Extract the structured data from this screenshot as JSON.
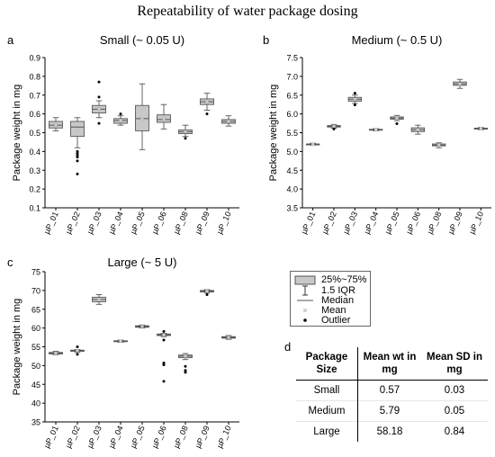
{
  "title": "Repeatability of water package dosing",
  "chart_data": [
    {
      "type": "box",
      "letter": "a",
      "title": "Small (~ 0.05 U)",
      "ylabel": "Package weight in mg",
      "xlabel": "",
      "ylim": [
        0.1,
        0.9
      ],
      "yticks": [
        "0.1",
        "0.2",
        "0.3",
        "0.4",
        "0.5",
        "0.6",
        "0.7",
        "0.8",
        "0.9"
      ],
      "categories": [
        "µP_01",
        "µP_02",
        "µP_03",
        "µP_04",
        "µP_05",
        "µP_06",
        "µP_08",
        "µP_09",
        "µP_10"
      ],
      "boxes": [
        {
          "whisker_low": 0.51,
          "q1": 0.525,
          "median": 0.54,
          "mean": 0.54,
          "q3": 0.56,
          "whisker_high": 0.58,
          "outliers": []
        },
        {
          "whisker_low": 0.42,
          "q1": 0.48,
          "median": 0.53,
          "mean": 0.51,
          "q3": 0.56,
          "whisker_high": 0.58,
          "outliers": [
            0.28,
            0.35,
            0.37,
            0.38,
            0.39,
            0.4
          ]
        },
        {
          "whisker_low": 0.58,
          "q1": 0.605,
          "median": 0.625,
          "mean": 0.625,
          "q3": 0.645,
          "whisker_high": 0.67,
          "outliers": [
            0.55,
            0.69,
            0.77
          ]
        },
        {
          "whisker_low": 0.54,
          "q1": 0.55,
          "median": 0.565,
          "mean": 0.565,
          "q3": 0.575,
          "whisker_high": 0.59,
          "outliers": [
            0.6
          ]
        },
        {
          "whisker_low": 0.41,
          "q1": 0.51,
          "median": 0.575,
          "mean": 0.575,
          "q3": 0.645,
          "whisker_high": 0.76,
          "outliers": []
        },
        {
          "whisker_low": 0.52,
          "q1": 0.555,
          "median": 0.57,
          "mean": 0.575,
          "q3": 0.595,
          "whisker_high": 0.65,
          "outliers": []
        },
        {
          "whisker_low": 0.48,
          "q1": 0.495,
          "median": 0.505,
          "mean": 0.505,
          "q3": 0.515,
          "whisker_high": 0.54,
          "outliers": [
            0.47
          ]
        },
        {
          "whisker_low": 0.62,
          "q1": 0.65,
          "median": 0.665,
          "mean": 0.665,
          "q3": 0.68,
          "whisker_high": 0.71,
          "outliers": [
            0.6
          ]
        },
        {
          "whisker_low": 0.535,
          "q1": 0.55,
          "median": 0.56,
          "mean": 0.56,
          "q3": 0.57,
          "whisker_high": 0.59,
          "outliers": []
        }
      ]
    },
    {
      "type": "box",
      "letter": "b",
      "title": "Medium (~ 0.5 U)",
      "ylabel": "Package weight in mg",
      "xlabel": "",
      "ylim": [
        3.5,
        7.5
      ],
      "yticks": [
        "3.5",
        "4.0",
        "4.5",
        "5.0",
        "5.5",
        "6.0",
        "6.5",
        "7.0",
        "7.5"
      ],
      "categories": [
        "µP_01",
        "µP_02",
        "µP_03",
        "µP_04",
        "µP_05",
        "µP_06",
        "µP_08",
        "µP_09",
        "µP_10"
      ],
      "boxes": [
        {
          "whisker_low": 5.17,
          "q1": 5.18,
          "median": 5.19,
          "mean": 5.19,
          "q3": 5.2,
          "whisker_high": 5.22,
          "outliers": []
        },
        {
          "whisker_low": 5.62,
          "q1": 5.65,
          "median": 5.67,
          "mean": 5.67,
          "q3": 5.69,
          "whisker_high": 5.72,
          "outliers": [
            5.6
          ]
        },
        {
          "whisker_low": 6.28,
          "q1": 6.34,
          "median": 6.39,
          "mean": 6.39,
          "q3": 6.44,
          "whisker_high": 6.5,
          "outliers": [
            6.24,
            6.55
          ]
        },
        {
          "whisker_low": 5.55,
          "q1": 5.57,
          "median": 5.58,
          "mean": 5.58,
          "q3": 5.59,
          "whisker_high": 5.61,
          "outliers": []
        },
        {
          "whisker_low": 5.82,
          "q1": 5.86,
          "median": 5.89,
          "mean": 5.89,
          "q3": 5.92,
          "whisker_high": 5.96,
          "outliers": [
            5.74
          ]
        },
        {
          "whisker_low": 5.46,
          "q1": 5.53,
          "median": 5.58,
          "mean": 5.58,
          "q3": 5.63,
          "whisker_high": 5.7,
          "outliers": []
        },
        {
          "whisker_low": 5.1,
          "q1": 5.15,
          "median": 5.17,
          "mean": 5.17,
          "q3": 5.2,
          "whisker_high": 5.23,
          "outliers": []
        },
        {
          "whisker_low": 6.68,
          "q1": 6.76,
          "median": 6.8,
          "mean": 6.8,
          "q3": 6.85,
          "whisker_high": 6.92,
          "outliers": []
        },
        {
          "whisker_low": 5.58,
          "q1": 5.6,
          "median": 5.61,
          "mean": 5.61,
          "q3": 5.62,
          "whisker_high": 5.64,
          "outliers": []
        }
      ]
    },
    {
      "type": "box",
      "letter": "c",
      "title": "Large (~ 5 U)",
      "ylabel": "Package weight in mg",
      "xlabel": "",
      "ylim": [
        35,
        75
      ],
      "yticks": [
        "35",
        "40",
        "45",
        "50",
        "55",
        "60",
        "65",
        "70",
        "75"
      ],
      "categories": [
        "µP_01",
        "µP_02",
        "µP_03",
        "µP_04",
        "µP_05",
        "µP_06",
        "µP_08",
        "µP_09",
        "µP_10"
      ],
      "boxes": [
        {
          "whisker_low": 52.9,
          "q1": 53.1,
          "median": 53.3,
          "mean": 53.3,
          "q3": 53.5,
          "whisker_high": 53.8,
          "outliers": []
        },
        {
          "whisker_low": 53.5,
          "q1": 53.8,
          "median": 54.0,
          "mean": 54.0,
          "q3": 54.1,
          "whisker_high": 54.3,
          "outliers": [
            53.0,
            55.0
          ]
        },
        {
          "whisker_low": 66.3,
          "q1": 67.0,
          "median": 67.6,
          "mean": 67.6,
          "q3": 68.2,
          "whisker_high": 68.9,
          "outliers": []
        },
        {
          "whisker_low": 56.2,
          "q1": 56.4,
          "median": 56.5,
          "mean": 56.5,
          "q3": 56.6,
          "whisker_high": 56.8,
          "outliers": []
        },
        {
          "whisker_low": 60.0,
          "q1": 60.2,
          "median": 60.4,
          "mean": 60.4,
          "q3": 60.6,
          "whisker_high": 60.8,
          "outliers": []
        },
        {
          "whisker_low": 57.7,
          "q1": 58.0,
          "median": 58.2,
          "mean": 58.2,
          "q3": 58.4,
          "whisker_high": 58.6,
          "outliers": [
            45.8,
            50.2,
            50.7,
            56.8,
            59.1
          ]
        },
        {
          "whisker_low": 51.6,
          "q1": 52.1,
          "median": 52.5,
          "mean": 52.5,
          "q3": 52.8,
          "whisker_high": 53.2,
          "outliers": [
            48.2,
            48.7,
            49.8
          ]
        },
        {
          "whisker_low": 69.3,
          "q1": 69.6,
          "median": 69.8,
          "mean": 69.8,
          "q3": 70.0,
          "whisker_high": 70.2,
          "outliers": [
            68.9
          ]
        },
        {
          "whisker_low": 57.0,
          "q1": 57.3,
          "median": 57.5,
          "mean": 57.5,
          "q3": 57.7,
          "whisker_high": 58.0,
          "outliers": []
        }
      ]
    }
  ],
  "legend": {
    "box": "25%~75%",
    "whisker": "1.5 IQR",
    "median": "Median",
    "mean": "Mean",
    "outlier": "Outlier"
  },
  "table": {
    "letter": "d",
    "headers": [
      "Package Size",
      "Mean wt in mg",
      "Mean SD in mg"
    ],
    "rows": [
      [
        "Small",
        "0.57",
        "0.03"
      ],
      [
        "Medium",
        "5.79",
        "0.05"
      ],
      [
        "Large",
        "58.18",
        "0.84"
      ]
    ]
  },
  "colors": {
    "box_fill": "#c8c8c8",
    "box_stroke": "#555555",
    "axis": "#000000",
    "outlier": "#000000",
    "mean": "#d0d0d0"
  }
}
